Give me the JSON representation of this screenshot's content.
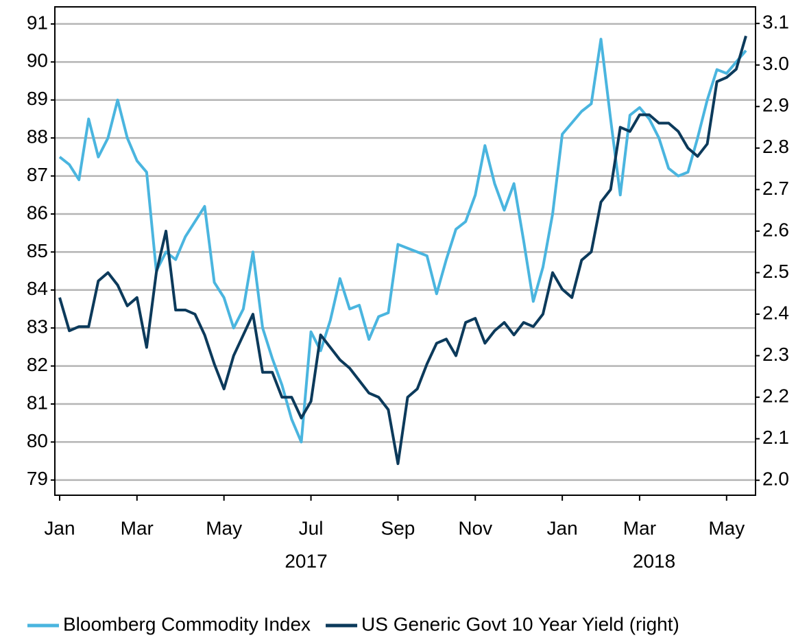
{
  "chart_data": {
    "type": "line",
    "categories": [
      "Jan",
      null,
      null,
      null,
      null,
      null,
      null,
      null,
      "Mar",
      null,
      null,
      null,
      null,
      null,
      null,
      null,
      null,
      "May",
      null,
      null,
      null,
      null,
      null,
      null,
      null,
      null,
      "Jul",
      null,
      null,
      null,
      null,
      null,
      null,
      null,
      null,
      "Sep",
      null,
      null,
      null,
      null,
      null,
      null,
      null,
      "Nov",
      null,
      null,
      null,
      null,
      null,
      null,
      null,
      null,
      "Jan",
      null,
      null,
      null,
      null,
      null,
      null,
      null,
      "Mar",
      null,
      null,
      null,
      null,
      null,
      null,
      null,
      null,
      "May",
      null,
      null
    ],
    "x_group_labels": [
      "2017",
      "2018"
    ],
    "series": [
      {
        "name": "Bloomberg Commodity Index",
        "color": "#4ab5df",
        "values": [
          87.5,
          87.3,
          86.9,
          88.5,
          87.5,
          88.0,
          89.0,
          88.0,
          87.4,
          87.1,
          84.5,
          85.0,
          84.8,
          85.4,
          85.8,
          86.2,
          84.2,
          83.8,
          83.0,
          83.5,
          85.0,
          83.0,
          82.2,
          81.5,
          80.6,
          80.0,
          82.9,
          82.4,
          83.2,
          84.3,
          83.5,
          83.6,
          82.7,
          83.3,
          83.4,
          85.2,
          85.1,
          85.0,
          84.9,
          83.9,
          84.8,
          85.6,
          85.8,
          86.5,
          87.8,
          86.8,
          86.1,
          86.8,
          85.3,
          83.7,
          84.6,
          86.0,
          88.1,
          88.4,
          88.7,
          88.9,
          90.6,
          88.5,
          86.5,
          88.6,
          88.8,
          88.5,
          88.0,
          87.2,
          87.0,
          87.1,
          88.0,
          89.0,
          89.8,
          89.7,
          90.0,
          90.3
        ]
      },
      {
        "name": "US Generic Govt 10 Year Yield (right)",
        "color": "#0c3a5b",
        "axis": "y2",
        "values": [
          2.44,
          2.36,
          2.37,
          2.37,
          2.48,
          2.5,
          2.47,
          2.42,
          2.44,
          2.32,
          2.5,
          2.6,
          2.41,
          2.41,
          2.4,
          2.35,
          2.28,
          2.22,
          2.3,
          2.35,
          2.4,
          2.26,
          2.26,
          2.2,
          2.2,
          2.15,
          2.19,
          2.35,
          2.32,
          2.29,
          2.27,
          2.24,
          2.21,
          2.2,
          2.17,
          2.04,
          2.2,
          2.22,
          2.28,
          2.33,
          2.34,
          2.3,
          2.38,
          2.39,
          2.33,
          2.36,
          2.38,
          2.35,
          2.38,
          2.37,
          2.4,
          2.5,
          2.46,
          2.44,
          2.53,
          2.55,
          2.67,
          2.7,
          2.85,
          2.84,
          2.88,
          2.88,
          2.86,
          2.86,
          2.84,
          2.8,
          2.78,
          2.81,
          2.96,
          2.97,
          2.99,
          3.07
        ]
      }
    ],
    "ylim": [
      78.6,
      91.45
    ],
    "yticks": [
      79,
      80,
      81,
      82,
      83,
      84,
      85,
      86,
      87,
      88,
      89,
      90,
      91
    ],
    "y2lim": [
      1.964,
      3.14
    ],
    "y2ticks": [
      {
        "value": 2,
        "label": "2.0"
      },
      2.1,
      2.2,
      2.3,
      2.4,
      2.5,
      2.6,
      2.7,
      2.8,
      2.9,
      {
        "value": 3,
        "label": "3.0"
      },
      3.1
    ],
    "grid": true,
    "legend": "bottom"
  }
}
